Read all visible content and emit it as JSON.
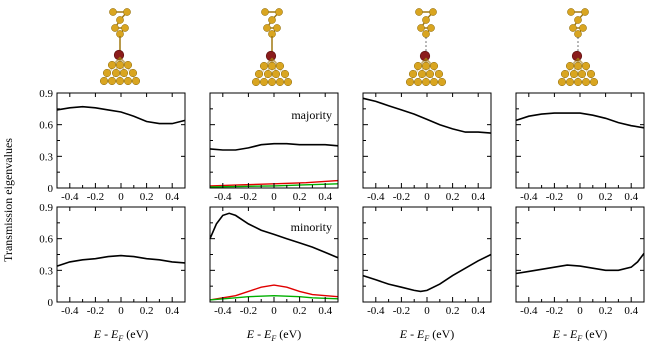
{
  "figure": {
    "ylabel": "Transmission eigenvalues",
    "xlabel_main": "E - E",
    "xlabel_sub": "F",
    "xlabel_unit": "(eV)",
    "row_labels": [
      "majority",
      "minority"
    ],
    "colors": {
      "total": "#000000",
      "ch2": "#e00000",
      "ch3": "#00b000",
      "gold": "#d9a520",
      "oxygen": "#8b1c1c"
    }
  },
  "chart_data": [
    {
      "type": "line",
      "panel": "row1-col1",
      "xlim": [
        -0.5,
        0.5
      ],
      "ylim": [
        0,
        0.9
      ],
      "xticks": [
        "-0.4",
        "-0.2",
        "0",
        "0.2",
        "0.4"
      ],
      "yticks": [
        "0",
        "0.3",
        "0.6",
        "0.9"
      ],
      "series": [
        {
          "color": "#000000",
          "x": [
            -0.5,
            -0.4,
            -0.3,
            -0.2,
            -0.1,
            0,
            0.1,
            0.2,
            0.3,
            0.4,
            0.5
          ],
          "y": [
            0.74,
            0.76,
            0.77,
            0.76,
            0.74,
            0.72,
            0.68,
            0.63,
            0.61,
            0.61,
            0.64
          ]
        }
      ]
    },
    {
      "type": "line",
      "panel": "row1-col2",
      "annotation": "majority",
      "xlim": [
        -0.5,
        0.5
      ],
      "ylim": [
        0,
        0.9
      ],
      "xticks": [
        "-0.4",
        "-0.2",
        "0",
        "0.2",
        "0.4"
      ],
      "yticks": [
        "0",
        "0.3",
        "0.6",
        "0.9"
      ],
      "series": [
        {
          "color": "#000000",
          "x": [
            -0.5,
            -0.4,
            -0.3,
            -0.2,
            -0.1,
            0,
            0.1,
            0.2,
            0.3,
            0.4,
            0.5
          ],
          "y": [
            0.37,
            0.36,
            0.36,
            0.38,
            0.41,
            0.42,
            0.42,
            0.41,
            0.41,
            0.41,
            0.4
          ]
        },
        {
          "color": "#e00000",
          "x": [
            -0.5,
            -0.25,
            0,
            0.25,
            0.5
          ],
          "y": [
            0.02,
            0.03,
            0.04,
            0.05,
            0.07
          ]
        },
        {
          "color": "#00b000",
          "x": [
            -0.5,
            -0.25,
            0,
            0.25,
            0.5
          ],
          "y": [
            0.01,
            0.015,
            0.02,
            0.03,
            0.04
          ]
        }
      ]
    },
    {
      "type": "line",
      "panel": "row1-col3",
      "xlim": [
        -0.5,
        0.5
      ],
      "ylim": [
        0,
        0.9
      ],
      "xticks": [
        "-0.4",
        "-0.2",
        "0",
        "0.2",
        "0.4"
      ],
      "yticks": [
        "0",
        "0.3",
        "0.6",
        "0.9"
      ],
      "series": [
        {
          "color": "#000000",
          "x": [
            -0.5,
            -0.4,
            -0.3,
            -0.2,
            -0.1,
            0,
            0.1,
            0.2,
            0.3,
            0.4,
            0.5
          ],
          "y": [
            0.85,
            0.82,
            0.78,
            0.74,
            0.7,
            0.65,
            0.6,
            0.56,
            0.53,
            0.53,
            0.52
          ]
        }
      ]
    },
    {
      "type": "line",
      "panel": "row1-col4",
      "xlim": [
        -0.5,
        0.5
      ],
      "ylim": [
        0,
        0.9
      ],
      "xticks": [
        "-0.4",
        "-0.2",
        "0",
        "0.2",
        "0.4"
      ],
      "yticks": [
        "0",
        "0.3",
        "0.6",
        "0.9"
      ],
      "series": [
        {
          "color": "#000000",
          "x": [
            -0.5,
            -0.4,
            -0.3,
            -0.2,
            -0.1,
            0,
            0.1,
            0.2,
            0.3,
            0.4,
            0.5
          ],
          "y": [
            0.64,
            0.68,
            0.7,
            0.71,
            0.71,
            0.71,
            0.69,
            0.66,
            0.62,
            0.59,
            0.57
          ]
        }
      ]
    },
    {
      "type": "line",
      "panel": "row2-col1",
      "xlim": [
        -0.5,
        0.5
      ],
      "ylim": [
        0,
        0.9
      ],
      "xticks": [
        "-0.4",
        "-0.2",
        "0",
        "0.2",
        "0.4"
      ],
      "yticks": [
        "0",
        "0.3",
        "0.6",
        "0.9"
      ],
      "series": [
        {
          "color": "#000000",
          "x": [
            -0.5,
            -0.4,
            -0.3,
            -0.2,
            -0.1,
            0,
            0.1,
            0.2,
            0.3,
            0.4,
            0.5
          ],
          "y": [
            0.34,
            0.38,
            0.4,
            0.41,
            0.43,
            0.44,
            0.43,
            0.41,
            0.4,
            0.38,
            0.37
          ]
        }
      ]
    },
    {
      "type": "line",
      "panel": "row2-col2",
      "annotation": "minority",
      "xlim": [
        -0.5,
        0.5
      ],
      "ylim": [
        0,
        0.9
      ],
      "xticks": [
        "-0.4",
        "-0.2",
        "0",
        "0.2",
        "0.4"
      ],
      "yticks": [
        "0",
        "0.3",
        "0.6",
        "0.9"
      ],
      "series": [
        {
          "color": "#000000",
          "x": [
            -0.5,
            -0.45,
            -0.4,
            -0.35,
            -0.3,
            -0.2,
            -0.1,
            0,
            0.1,
            0.2,
            0.3,
            0.4,
            0.5
          ],
          "y": [
            0.6,
            0.74,
            0.82,
            0.84,
            0.82,
            0.74,
            0.68,
            0.64,
            0.6,
            0.56,
            0.52,
            0.47,
            0.42
          ]
        },
        {
          "color": "#e00000",
          "x": [
            -0.5,
            -0.3,
            -0.2,
            -0.1,
            0,
            0.1,
            0.2,
            0.3,
            0.5
          ],
          "y": [
            0.02,
            0.06,
            0.1,
            0.14,
            0.16,
            0.14,
            0.1,
            0.07,
            0.05
          ]
        },
        {
          "color": "#00b000",
          "x": [
            -0.5,
            -0.3,
            -0.2,
            0,
            0.2,
            0.3,
            0.5
          ],
          "y": [
            0.02,
            0.04,
            0.05,
            0.06,
            0.05,
            0.04,
            0.03
          ]
        }
      ]
    },
    {
      "type": "line",
      "panel": "row2-col3",
      "xlim": [
        -0.5,
        0.5
      ],
      "ylim": [
        0,
        0.9
      ],
      "xticks": [
        "-0.4",
        "-0.2",
        "0",
        "0.2",
        "0.4"
      ],
      "yticks": [
        "0",
        "0.3",
        "0.6",
        "0.9"
      ],
      "series": [
        {
          "color": "#000000",
          "x": [
            -0.5,
            -0.4,
            -0.3,
            -0.2,
            -0.1,
            -0.05,
            0,
            0.1,
            0.2,
            0.3,
            0.4,
            0.5
          ],
          "y": [
            0.25,
            0.21,
            0.17,
            0.14,
            0.11,
            0.1,
            0.11,
            0.17,
            0.25,
            0.32,
            0.39,
            0.45
          ]
        }
      ]
    },
    {
      "type": "line",
      "panel": "row2-col4",
      "xlim": [
        -0.5,
        0.5
      ],
      "ylim": [
        0,
        0.9
      ],
      "xticks": [
        "-0.4",
        "-0.2",
        "0",
        "0.2",
        "0.4"
      ],
      "yticks": [
        "0",
        "0.3",
        "0.6",
        "0.9"
      ],
      "series": [
        {
          "color": "#000000",
          "x": [
            -0.5,
            -0.4,
            -0.3,
            -0.2,
            -0.1,
            0,
            0.1,
            0.2,
            0.3,
            0.4,
            0.45,
            0.5
          ],
          "y": [
            0.27,
            0.29,
            0.31,
            0.33,
            0.35,
            0.34,
            0.32,
            0.3,
            0.3,
            0.33,
            0.38,
            0.46
          ]
        }
      ]
    }
  ]
}
